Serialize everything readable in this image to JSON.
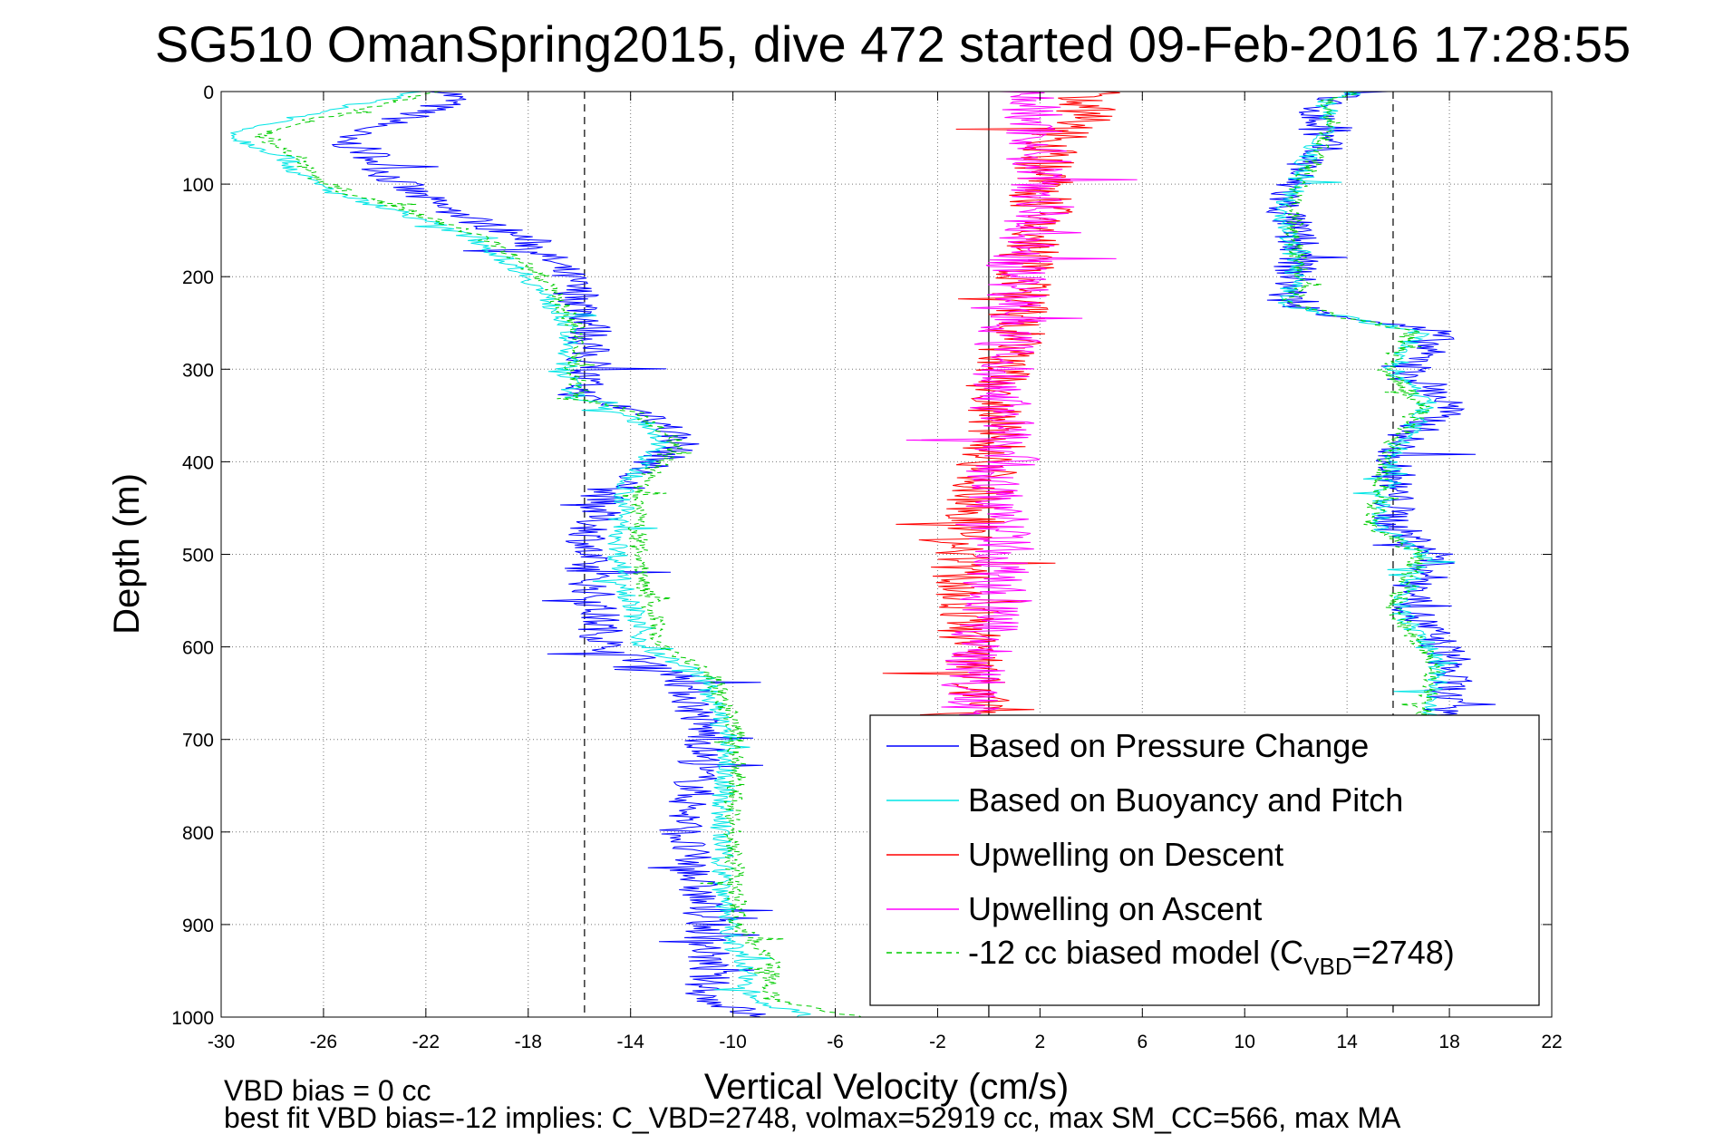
{
  "chart_data": {
    "type": "line",
    "title": "SG510 OmanSpring2015, dive 472 started 09-Feb-2016 17:28:55",
    "xlabel": "Vertical Velocity (cm/s)",
    "ylabel": "Depth (m)",
    "xlim": [
      -30,
      22
    ],
    "ylim": [
      0,
      1000
    ],
    "y_reversed": true,
    "grid": true,
    "legend_position": "bottom-right",
    "x_ticks": [
      -30,
      -26,
      -22,
      -18,
      -14,
      -10,
      -6,
      -2,
      2,
      6,
      10,
      14,
      18,
      22
    ],
    "y_ticks": [
      0,
      100,
      200,
      300,
      400,
      500,
      600,
      700,
      800,
      900,
      1000
    ],
    "x_tick_labels": [
      "-30",
      "-26",
      "-22",
      "-18",
      "-14",
      "-10",
      "-6",
      "-2",
      "2",
      "6",
      "10",
      "14",
      "18",
      "22"
    ],
    "y_tick_labels": [
      "0",
      "100",
      "200",
      "300",
      "400",
      "500",
      "600",
      "700",
      "800",
      "900",
      "1000"
    ],
    "reference_lines": [
      {
        "x": -15.8,
        "style": "dashed",
        "color": "#000000"
      },
      {
        "x": 0,
        "style": "solid",
        "color": "#000000"
      },
      {
        "x": 15.8,
        "style": "dashed",
        "color": "#000000"
      }
    ],
    "series": [
      {
        "name": "Based on Pressure Change",
        "color": "#0000ff",
        "dash": "none",
        "noise": 0.9,
        "segments": [
          {
            "depth": [
              0,
              10,
              30,
              50,
              70,
              90,
              110,
              130,
              160,
              200,
              250,
              300,
              330,
              350,
              380,
              400,
              430,
              500,
              600,
              630,
              700,
              800,
              900,
              980,
              1000
            ],
            "x": [
              -21,
              -21,
              -23,
              -25.5,
              -24,
              -23.5,
              -22.5,
              -21,
              -18,
              -16.5,
              -15.5,
              -15.8,
              -16,
              -13,
              -12,
              -13,
              -15,
              -15.8,
              -15,
              -12,
              -11,
              -12,
              -11,
              -11,
              -9
            ]
          },
          {
            "depth": [
              0,
              10,
              30,
              60,
              90,
              120,
              160,
              200,
              230,
              260,
              300,
              340,
              380,
              420,
              470,
              500,
              560,
              610,
              640,
              680
            ],
            "x": [
              15,
              13,
              12.8,
              13,
              12,
              11.5,
              12,
              12,
              11.5,
              17.5,
              16.5,
              18,
              16,
              15.8,
              15.8,
              17.5,
              16.5,
              18,
              18,
              17.5
            ]
          }
        ]
      },
      {
        "name": "Based on Buoyancy and Pitch",
        "color": "#00e5e5",
        "dash": "none",
        "noise": 0.45,
        "segments": [
          {
            "depth": [
              0,
              10,
              40,
              50,
              70,
              90,
              110,
              130,
              160,
              200,
              250,
              300,
              330,
              350,
              380,
              400,
              430,
              500,
              600,
              630,
              700,
              800,
              900,
              980,
              1000
            ],
            "x": [
              -22,
              -24,
              -29,
              -29.5,
              -27.5,
              -27,
              -25.5,
              -23,
              -20,
              -18,
              -16.5,
              -16.5,
              -16.2,
              -14,
              -12.8,
              -13.5,
              -14.2,
              -14.5,
              -13.5,
              -11.2,
              -10.2,
              -10.5,
              -10.2,
              -9.2,
              -7
            ]
          },
          {
            "depth": [
              0,
              10,
              40,
              70,
              100,
              130,
              160,
              200,
              230,
              260,
              300,
              340,
              380,
              420,
              470,
              500,
              560,
              610,
              640,
              680
            ],
            "x": [
              14.5,
              13.2,
              13.2,
              12.5,
              12,
              11.5,
              11.8,
              12,
              11.5,
              16.8,
              15.8,
              17.2,
              16,
              15.5,
              15.2,
              17,
              16,
              17.5,
              17.5,
              17
            ]
          }
        ]
      },
      {
        "name": "Upwelling on Descent",
        "color": "#ff0000",
        "dash": "none",
        "noise": 1.3,
        "segments": [
          {
            "depth": [
              0,
              30,
              60,
              100,
              140,
              180,
              220,
              260,
              300,
              340,
              380,
              420,
              460,
              500,
              540,
              580,
              620,
              680
            ],
            "x": [
              4,
              3.5,
              2.5,
              2,
              2,
              1.5,
              1.2,
              1,
              0.4,
              0,
              0.3,
              -0.2,
              -0.5,
              -1.2,
              -1,
              -0.8,
              -0.5,
              -0.5
            ]
          }
        ]
      },
      {
        "name": "Upwelling on Ascent",
        "color": "#ff00ff",
        "dash": "none",
        "noise": 1.3,
        "segments": [
          {
            "depth": [
              0,
              40,
              80,
              120,
              160,
              200,
              240,
              280,
              320,
              360,
              400,
              420,
              460,
              500,
              560,
              620,
              680
            ],
            "x": [
              1.5,
              1.8,
              2,
              2.2,
              1.5,
              1,
              1.2,
              0.5,
              0.5,
              0.6,
              0.8,
              0,
              0.4,
              0.5,
              0,
              -0.5,
              -1
            ]
          }
        ]
      },
      {
        "name": "-12 cc biased model (C_VBD=2748)",
        "color": "#00cc00",
        "dash": "6,5",
        "noise": 0.4,
        "segments": [
          {
            "depth": [
              0,
              10,
              40,
              50,
              70,
              90,
              110,
              130,
              160,
              200,
              250,
              300,
              330,
              350,
              380,
              400,
              430,
              500,
              600,
              630,
              700,
              800,
              900,
              940,
              980,
              1000
            ],
            "x": [
              -21.5,
              -23,
              -28,
              -28.5,
              -27,
              -26.5,
              -25,
              -22.5,
              -19.5,
              -17.5,
              -16.2,
              -16.2,
              -16,
              -13.5,
              -12.2,
              -12.8,
              -13.8,
              -13.7,
              -12.8,
              -10.8,
              -9.8,
              -10,
              -9.8,
              -8.5,
              -8.5,
              -5
            ]
          },
          {
            "depth": [
              0,
              10,
              40,
              70,
              100,
              130,
              160,
              200,
              230,
              260,
              300,
              340,
              380,
              420,
              470,
              500,
              560,
              610,
              640,
              680
            ],
            "x": [
              14.2,
              13.3,
              13.4,
              12.8,
              12.2,
              11.8,
              12,
              12.2,
              11.8,
              16.5,
              15.5,
              17,
              15.8,
              15.3,
              15,
              16.8,
              15.8,
              17.2,
              17.3,
              16.8
            ]
          }
        ]
      }
    ],
    "legend_entries": [
      {
        "label": "Based on Pressure Change",
        "color": "#0000ff",
        "dash": "none"
      },
      {
        "label": "Based on Buoyancy and Pitch",
        "color": "#00e5e5",
        "dash": "none"
      },
      {
        "label": "Upwelling on Descent",
        "color": "#ff0000",
        "dash": "none"
      },
      {
        "label": "Upwelling on Ascent",
        "color": "#ff00ff",
        "dash": "none"
      },
      {
        "label_main": "-12 cc biased model (C",
        "label_sub": "VBD",
        "label_tail": "=2748)",
        "color": "#00cc00",
        "dash": "6,5"
      }
    ],
    "annotations": [
      "VBD bias = 0 cc",
      "best fit VBD bias=-12 implies: C_VBD=2748, volmax=52919 cc, max SM_CC=566, max MA"
    ]
  }
}
